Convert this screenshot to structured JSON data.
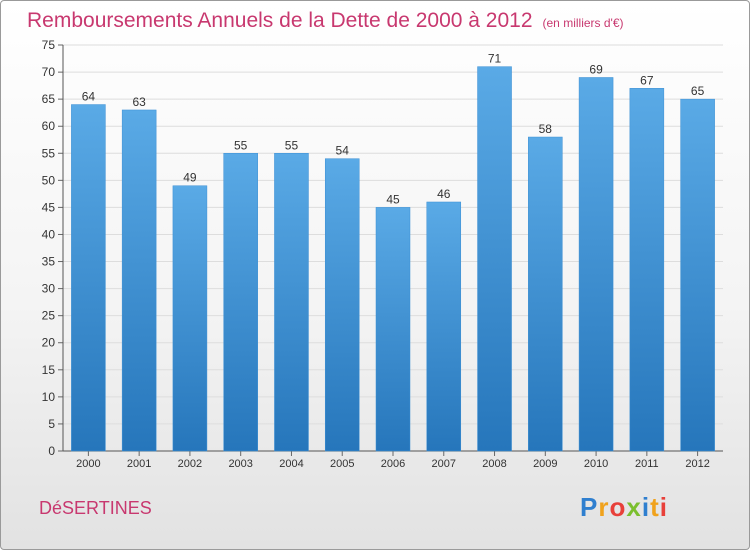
{
  "header": {
    "title": "Remboursements Annuels de la Dette de 2000 à 2012",
    "unit": "(en milliers d'€)"
  },
  "commune": "DéSERTINES",
  "logo": {
    "text": [
      "P",
      "r",
      "o",
      "x",
      "i",
      "t",
      "i"
    ]
  },
  "colors": {
    "title": "#c8386f",
    "bar_top": "#5aaae6",
    "bar_bottom": "#2676bb",
    "grid": "#dddddd"
  },
  "chart_data": {
    "type": "bar",
    "categories": [
      "2000",
      "2001",
      "2002",
      "2003",
      "2004",
      "2005",
      "2006",
      "2007",
      "2008",
      "2009",
      "2010",
      "2011",
      "2012"
    ],
    "values": [
      64,
      63,
      49,
      55,
      55,
      54,
      45,
      46,
      71,
      58,
      69,
      67,
      65
    ],
    "ylim": [
      0,
      75
    ],
    "yticks": [
      "0",
      "5",
      "10",
      "15",
      "20",
      "25",
      "30",
      "35",
      "40",
      "45",
      "50",
      "55",
      "60",
      "65",
      "70",
      "75"
    ],
    "grid": true,
    "data_labels": true
  }
}
